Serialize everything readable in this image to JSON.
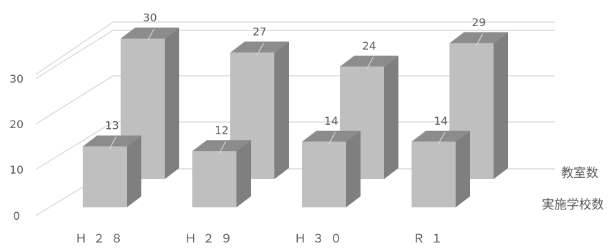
{
  "chart_data": {
    "type": "bar",
    "categories": [
      "Ｈ２８",
      "Ｈ２９",
      "Ｈ３０",
      "Ｒ１"
    ],
    "series": [
      {
        "name": "実施学校数",
        "values": [
          13,
          12,
          14,
          14
        ]
      },
      {
        "name": "教室数",
        "values": [
          30,
          27,
          24,
          29
        ]
      }
    ],
    "yticks": [
      0,
      10,
      20,
      30
    ],
    "ylim": [
      0,
      40
    ],
    "grid": true,
    "data_labels": true,
    "colors": {
      "front": "#bfbfbf",
      "side": "#7f7f7f",
      "top": "#8c8c8c",
      "grid": "#d9d9d9",
      "text": "#595959"
    }
  }
}
